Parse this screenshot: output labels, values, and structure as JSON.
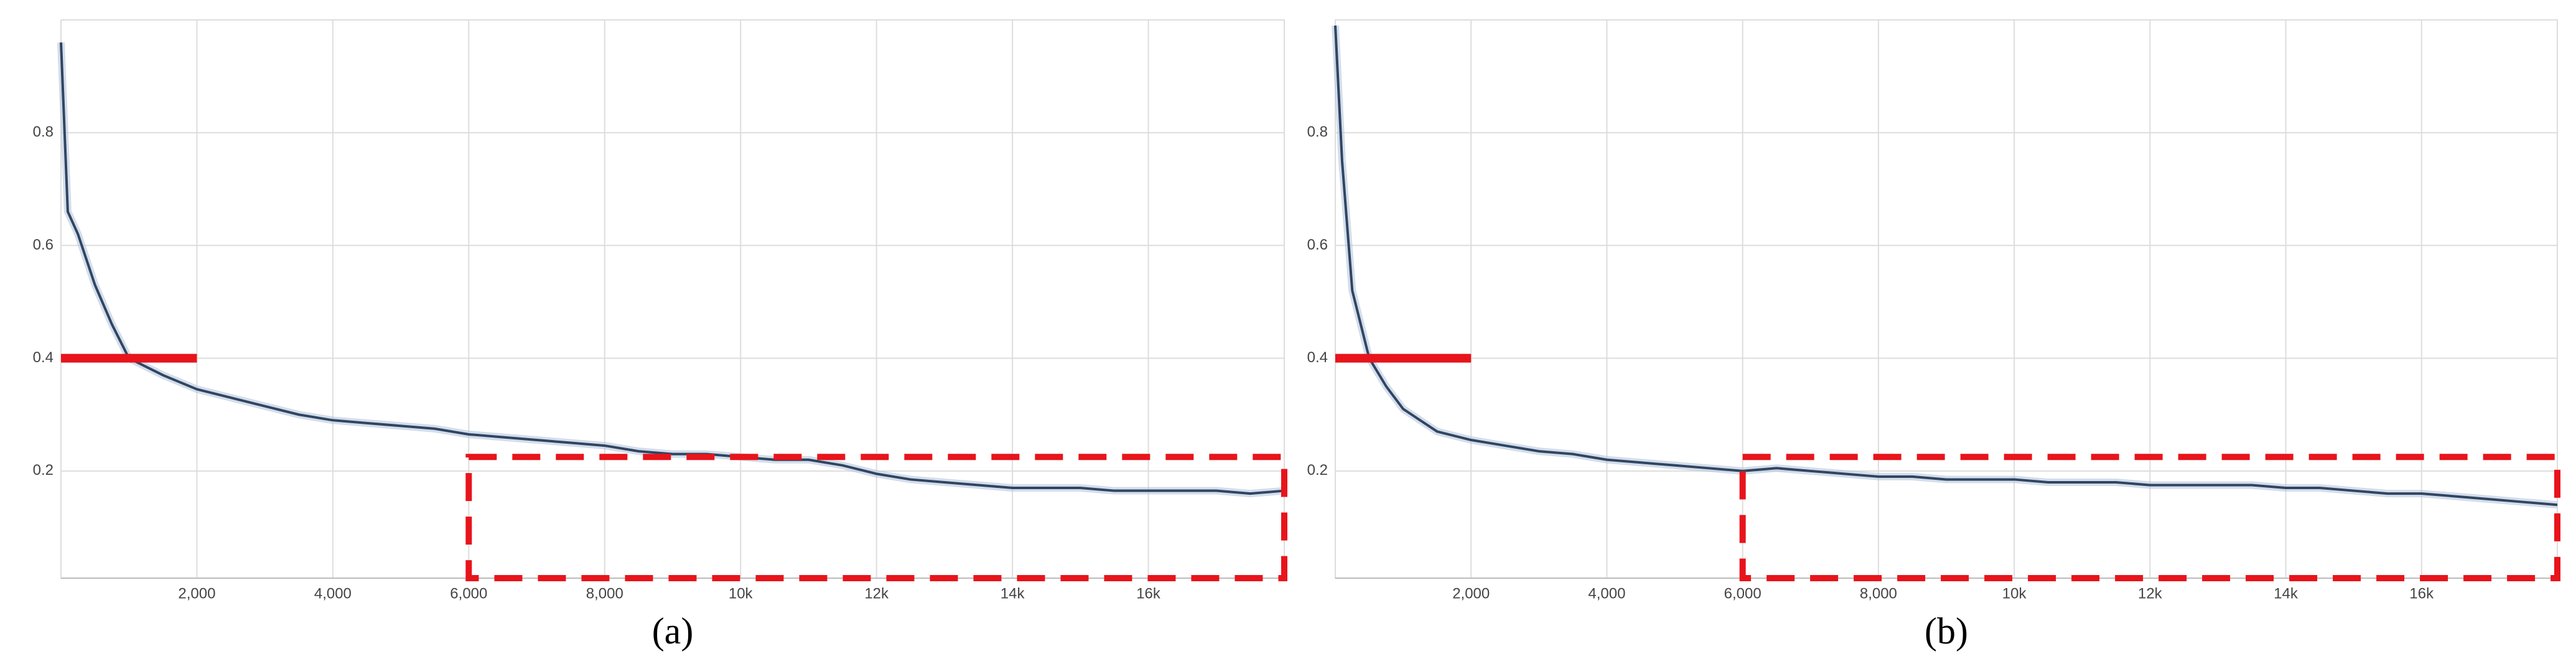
{
  "chart_data": [
    {
      "type": "line",
      "caption": "(a)",
      "x": [
        0,
        100,
        250,
        500,
        750,
        1000,
        1500,
        2000,
        2500,
        3000,
        3500,
        4000,
        4500,
        5000,
        5500,
        6000,
        6500,
        7000,
        7500,
        8000,
        8500,
        9000,
        9500,
        10000,
        10500,
        11000,
        11500,
        12000,
        12500,
        13000,
        13500,
        14000,
        14500,
        15000,
        15500,
        16000,
        16500,
        17000,
        17500,
        18000
      ],
      "series": [
        {
          "color": "#2f4562",
          "values": [
            0.96,
            0.66,
            0.62,
            0.53,
            0.46,
            0.4,
            0.37,
            0.345,
            0.33,
            0.315,
            0.3,
            0.29,
            0.285,
            0.28,
            0.275,
            0.265,
            0.26,
            0.255,
            0.25,
            0.245,
            0.235,
            0.23,
            0.23,
            0.225,
            0.22,
            0.22,
            0.21,
            0.195,
            0.185,
            0.18,
            0.175,
            0.17,
            0.17,
            0.17,
            0.165,
            0.165,
            0.165,
            0.165,
            0.16,
            0.165
          ]
        }
      ],
      "xlim": [
        0,
        18000
      ],
      "ylim": [
        0.01,
        1.0
      ],
      "xticks": [
        {
          "value": 2000,
          "label": "2,000"
        },
        {
          "value": 4000,
          "label": "4,000"
        },
        {
          "value": 6000,
          "label": "6,000"
        },
        {
          "value": 8000,
          "label": "8,000"
        },
        {
          "value": 10000,
          "label": "10k"
        },
        {
          "value": 12000,
          "label": "12k"
        },
        {
          "value": 14000,
          "label": "14k"
        },
        {
          "value": 16000,
          "label": "16k"
        }
      ],
      "yticks": [
        0.2,
        0.4,
        0.6,
        0.8
      ],
      "grid": true,
      "reference_line": {
        "y": 0.4,
        "x": [
          0,
          2000
        ],
        "color": "#e8141b"
      },
      "highlight_box": {
        "x": [
          6000,
          18000
        ],
        "y": [
          0.01,
          0.225
        ],
        "color": "#e8141b"
      }
    },
    {
      "type": "line",
      "caption": "(b)",
      "x": [
        0,
        100,
        250,
        500,
        750,
        1000,
        1500,
        2000,
        2500,
        3000,
        3500,
        4000,
        4500,
        5000,
        5500,
        6000,
        6500,
        7000,
        7500,
        8000,
        8500,
        9000,
        9500,
        10000,
        10500,
        11000,
        11500,
        12000,
        12500,
        13000,
        13500,
        14000,
        14500,
        15000,
        15500,
        16000,
        16500,
        17000,
        17500,
        18000
      ],
      "series": [
        {
          "color": "#2f4562",
          "values": [
            0.99,
            0.75,
            0.52,
            0.4,
            0.35,
            0.31,
            0.27,
            0.255,
            0.245,
            0.235,
            0.23,
            0.22,
            0.215,
            0.21,
            0.205,
            0.2,
            0.205,
            0.2,
            0.195,
            0.19,
            0.19,
            0.185,
            0.185,
            0.185,
            0.18,
            0.18,
            0.18,
            0.175,
            0.175,
            0.175,
            0.175,
            0.17,
            0.17,
            0.165,
            0.16,
            0.16,
            0.155,
            0.15,
            0.145,
            0.14
          ]
        }
      ],
      "xlim": [
        0,
        18000
      ],
      "ylim": [
        0.01,
        1.0
      ],
      "xticks": [
        {
          "value": 2000,
          "label": "2,000"
        },
        {
          "value": 4000,
          "label": "4,000"
        },
        {
          "value": 6000,
          "label": "6,000"
        },
        {
          "value": 8000,
          "label": "8,000"
        },
        {
          "value": 10000,
          "label": "10k"
        },
        {
          "value": 12000,
          "label": "12k"
        },
        {
          "value": 14000,
          "label": "14k"
        },
        {
          "value": 16000,
          "label": "16k"
        }
      ],
      "yticks": [
        0.2,
        0.4,
        0.6,
        0.8
      ],
      "grid": true,
      "reference_line": {
        "y": 0.4,
        "x": [
          0,
          2000
        ],
        "color": "#e8141b"
      },
      "highlight_box": {
        "x": [
          6000,
          18000
        ],
        "y": [
          0.01,
          0.225
        ],
        "color": "#e8141b"
      }
    }
  ]
}
